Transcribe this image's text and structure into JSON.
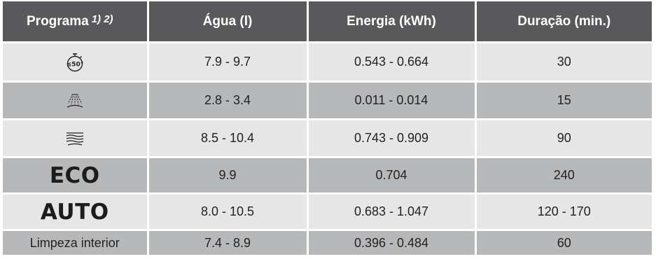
{
  "table": {
    "headers": {
      "programa": "Programa",
      "programa_notes": "1) 2)",
      "agua": "Água (l)",
      "energia": "Energia (kWh)",
      "duracao": "Duração (min.)"
    },
    "rows": [
      {
        "program_icon": "quick-50-stopwatch-icon",
        "program_icon_text": "≤50°",
        "agua": "7.9 - 9.7",
        "energia": "0.543 - 0.664",
        "duracao": "30"
      },
      {
        "program_icon": "prewash-spray-icon",
        "agua": "2.8 - 3.4",
        "energia": "0.011 - 0.014",
        "duracao": "15"
      },
      {
        "program_icon": "intensive-wave-lines-icon",
        "agua": "8.5 - 10.4",
        "energia": "0.743 - 0.909",
        "duracao": "90"
      },
      {
        "program_label": "ECO",
        "agua": "9.9",
        "energia": "0.704",
        "duracao": "240"
      },
      {
        "program_label": "AUTO",
        "agua": "8.0 - 10.5",
        "energia": "0.683 - 1.047",
        "duracao": "120 - 170"
      },
      {
        "program_label": "Limpeza interior",
        "agua": "7.4 - 8.9",
        "energia": "0.396 - 0.484",
        "duracao": "60"
      }
    ]
  }
}
